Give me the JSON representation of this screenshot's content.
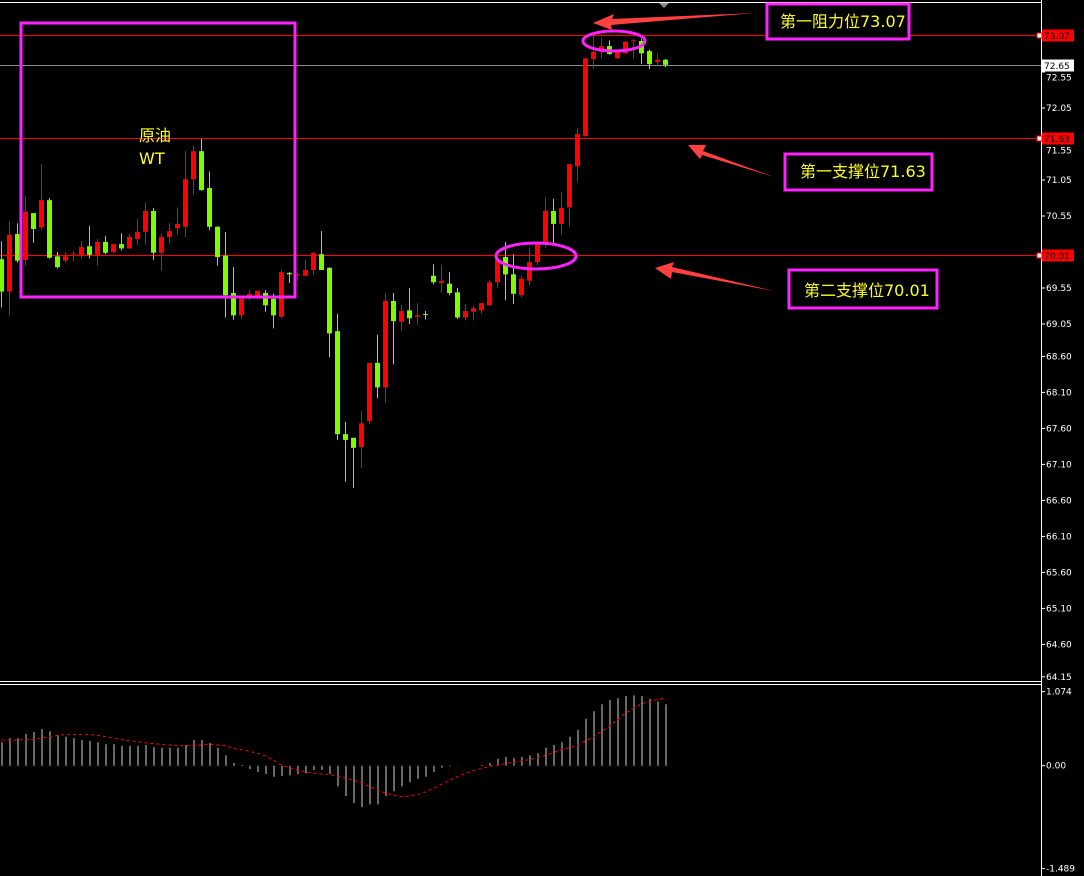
{
  "chart_data": {
    "type": "candlestick",
    "instrument_label": [
      "原油",
      "WT"
    ],
    "colors": {
      "up": "#ff0000",
      "down": "#7cfc00",
      "level_line": "#ff0000",
      "current_line": "#8a8a8a",
      "annotation_box": "#ff22ff",
      "annotation_text": "#ffff1e",
      "arrow": "#ff4040",
      "macd_hist": "#d0d0d0",
      "macd_signal": "#ff0000"
    },
    "price_axis": {
      "ylim": [
        64.15,
        73.3
      ],
      "ticks": [
        "72.55",
        "72.05",
        "71.55",
        "71.05",
        "70.55",
        "69.55",
        "69.05",
        "68.60",
        "68.10",
        "67.60",
        "67.10",
        "66.60",
        "66.10",
        "65.60",
        "65.10",
        "64.60",
        "64.15"
      ]
    },
    "levels": [
      {
        "value": "73.07",
        "label": "第一阻力位73.07"
      },
      {
        "value": "71.63",
        "label": "第一支撑位71.63"
      },
      {
        "value": "70.01",
        "label": "第二支撑位70.01"
      }
    ],
    "current_price": "72.65",
    "ohlc": [
      [
        69.95,
        70.2,
        69.28,
        69.5
      ],
      [
        69.5,
        70.48,
        69.17,
        70.29
      ],
      [
        70.3,
        70.45,
        69.9,
        69.93
      ],
      [
        69.94,
        70.83,
        69.86,
        70.61
      ],
      [
        70.59,
        70.59,
        70.18,
        70.37
      ],
      [
        70.39,
        71.27,
        70.36,
        70.77
      ],
      [
        70.77,
        70.8,
        69.96,
        69.97
      ],
      [
        69.99,
        70.05,
        69.82,
        69.84
      ],
      [
        69.93,
        70.05,
        69.9,
        69.99
      ],
      [
        70.02,
        70.06,
        69.92,
        70.03
      ],
      [
        70.01,
        70.2,
        69.96,
        70.12
      ],
      [
        70.13,
        70.41,
        69.96,
        70.01
      ],
      [
        70.01,
        70.23,
        69.86,
        70.19
      ],
      [
        70.19,
        70.27,
        70.02,
        70.04
      ],
      [
        70.05,
        70.16,
        70.03,
        70.16
      ],
      [
        70.16,
        70.31,
        70.07,
        70.1
      ],
      [
        70.1,
        70.3,
        70.09,
        70.26
      ],
      [
        70.23,
        70.51,
        70.15,
        70.33
      ],
      [
        70.33,
        70.74,
        70.15,
        70.62
      ],
      [
        70.62,
        70.66,
        69.94,
        70.04
      ],
      [
        70.04,
        70.31,
        69.79,
        70.26
      ],
      [
        70.26,
        70.45,
        70.17,
        70.34
      ],
      [
        70.38,
        70.67,
        70.29,
        70.44
      ],
      [
        70.4,
        71.45,
        70.26,
        71.06
      ],
      [
        71.06,
        71.52,
        70.84,
        71.45
      ],
      [
        71.45,
        71.62,
        70.9,
        70.91
      ],
      [
        70.94,
        71.17,
        70.35,
        70.4
      ],
      [
        70.4,
        70.41,
        69.86,
        69.98
      ],
      [
        70.0,
        70.33,
        69.14,
        69.45
      ],
      [
        69.48,
        69.84,
        69.11,
        69.17
      ],
      [
        69.17,
        69.42,
        69.12,
        69.4
      ],
      [
        69.42,
        69.52,
        69.38,
        69.47
      ],
      [
        69.42,
        69.51,
        69.42,
        69.51
      ],
      [
        69.48,
        69.52,
        69.22,
        69.31
      ],
      [
        69.4,
        69.47,
        68.99,
        69.17
      ],
      [
        69.15,
        69.8,
        69.13,
        69.77
      ],
      [
        69.76,
        69.77,
        69.62,
        69.74
      ],
      [
        69.73,
        69.77,
        69.65,
        69.74
      ],
      [
        69.72,
        69.94,
        69.72,
        69.8
      ],
      [
        69.8,
        70.05,
        69.73,
        70.04
      ],
      [
        70.02,
        70.34,
        69.8,
        69.8
      ],
      [
        69.83,
        69.84,
        68.59,
        68.92
      ],
      [
        68.95,
        69.19,
        67.44,
        67.52
      ],
      [
        67.52,
        67.69,
        66.86,
        67.44
      ],
      [
        67.47,
        67.47,
        66.77,
        67.33
      ],
      [
        67.34,
        67.84,
        67.05,
        67.67
      ],
      [
        67.7,
        68.51,
        67.66,
        68.51
      ],
      [
        68.51,
        68.9,
        68.02,
        68.17
      ],
      [
        68.17,
        69.48,
        67.95,
        69.37
      ],
      [
        69.37,
        69.48,
        68.49,
        69.09
      ],
      [
        69.08,
        69.31,
        68.95,
        69.23
      ],
      [
        69.24,
        69.55,
        69.05,
        69.13
      ],
      [
        69.15,
        69.34,
        69.04,
        69.17
      ],
      [
        69.19,
        69.23,
        69.11,
        69.18
      ],
      [
        69.72,
        69.88,
        69.6,
        69.63
      ],
      [
        69.62,
        69.87,
        69.49,
        69.65
      ],
      [
        69.61,
        69.77,
        69.45,
        69.48
      ],
      [
        69.49,
        69.55,
        69.12,
        69.14
      ],
      [
        69.14,
        69.33,
        69.1,
        69.23
      ],
      [
        69.22,
        69.3,
        69.1,
        69.27
      ],
      [
        69.24,
        69.34,
        69.19,
        69.34
      ],
      [
        69.31,
        69.66,
        69.3,
        69.63
      ],
      [
        69.63,
        69.98,
        69.55,
        69.94
      ],
      [
        69.98,
        70.19,
        69.38,
        69.74
      ],
      [
        69.74,
        70.02,
        69.33,
        69.47
      ],
      [
        69.45,
        69.72,
        69.42,
        69.68
      ],
      [
        69.65,
        70.11,
        69.59,
        69.91
      ],
      [
        69.91,
        70.16,
        69.87,
        70.16
      ],
      [
        70.15,
        70.8,
        70.11,
        70.62
      ],
      [
        70.62,
        70.79,
        70.16,
        70.44
      ],
      [
        70.44,
        70.88,
        70.29,
        70.66
      ],
      [
        70.67,
        71.27,
        70.4,
        71.27
      ],
      [
        71.24,
        71.77,
        71.02,
        71.69
      ],
      [
        71.66,
        72.74,
        71.65,
        72.74
      ],
      [
        72.73,
        73.06,
        72.59,
        72.83
      ],
      [
        72.83,
        73.02,
        72.74,
        72.91
      ],
      [
        72.91,
        72.99,
        72.79,
        72.8
      ],
      [
        72.74,
        72.86,
        72.73,
        72.84
      ],
      [
        72.81,
        72.98,
        72.8,
        72.97
      ],
      [
        72.98,
        73.01,
        72.74,
        72.99
      ],
      [
        72.98,
        73.01,
        72.66,
        72.81
      ],
      [
        72.84,
        72.86,
        72.59,
        72.66
      ],
      [
        72.69,
        72.8,
        72.65,
        72.72
      ],
      [
        72.72,
        72.73,
        72.62,
        72.65
      ]
    ],
    "macd": {
      "axis_ticks": [
        "1.074",
        "0.00",
        "-1.489"
      ],
      "ylim": [
        -1.489,
        1.074
      ],
      "histogram": [
        0.34,
        0.4,
        0.4,
        0.46,
        0.49,
        0.53,
        0.5,
        0.44,
        0.42,
        0.4,
        0.37,
        0.36,
        0.34,
        0.31,
        0.31,
        0.29,
        0.29,
        0.29,
        0.3,
        0.27,
        0.26,
        0.26,
        0.26,
        0.3,
        0.37,
        0.37,
        0.33,
        0.26,
        0.15,
        0.04,
        0.01,
        -0.05,
        -0.09,
        -0.12,
        -0.16,
        -0.15,
        -0.14,
        -0.12,
        -0.11,
        -0.06,
        -0.06,
        -0.12,
        -0.3,
        -0.44,
        -0.54,
        -0.6,
        -0.56,
        -0.56,
        -0.44,
        -0.37,
        -0.3,
        -0.24,
        -0.19,
        -0.16,
        -0.09,
        -0.03,
        -0.01,
        -0.005,
        0,
        0,
        0.01,
        0.04,
        0.1,
        0.13,
        0.11,
        0.13,
        0.15,
        0.18,
        0.26,
        0.3,
        0.34,
        0.42,
        0.52,
        0.68,
        0.79,
        0.89,
        0.95,
        0.98,
        1.01,
        1.02,
        1.01,
        0.97,
        0.93,
        0.89
      ],
      "signal": [
        0.37,
        0.37,
        0.37,
        0.38,
        0.38,
        0.4,
        0.42,
        0.44,
        0.45,
        0.45,
        0.45,
        0.45,
        0.44,
        0.42,
        0.4,
        0.38,
        0.36,
        0.35,
        0.33,
        0.32,
        0.31,
        0.3,
        0.29,
        0.29,
        0.29,
        0.3,
        0.31,
        0.3,
        0.29,
        0.25,
        0.23,
        0.21,
        0.18,
        0.14,
        0.08,
        0.01,
        -0.03,
        -0.06,
        -0.09,
        -0.11,
        -0.12,
        -0.13,
        -0.15,
        -0.18,
        -0.21,
        -0.25,
        -0.3,
        -0.35,
        -0.4,
        -0.43,
        -0.45,
        -0.44,
        -0.42,
        -0.38,
        -0.33,
        -0.27,
        -0.21,
        -0.16,
        -0.11,
        -0.07,
        -0.04,
        -0.01,
        0.01,
        0.03,
        0.05,
        0.07,
        0.09,
        0.12,
        0.15,
        0.19,
        0.23,
        0.26,
        0.3,
        0.36,
        0.42,
        0.5,
        0.57,
        0.67,
        0.76,
        0.83,
        0.9,
        0.93,
        0.96,
        0.98
      ]
    }
  }
}
